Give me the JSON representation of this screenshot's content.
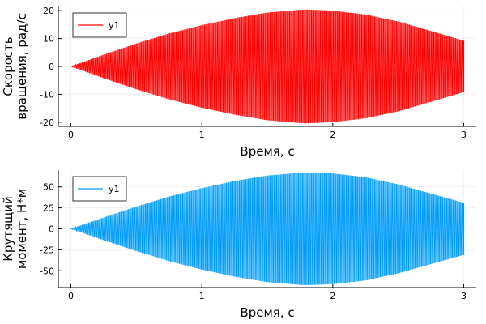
{
  "chart_data": [
    {
      "type": "line",
      "title": "",
      "xlabel": "Время, с",
      "ylabel": [
        "Скорость",
        "вращения, рад/с"
      ],
      "xlim": [
        0,
        3
      ],
      "ylim": [
        -21.5,
        21.5
      ],
      "xticks": [
        0,
        1,
        2,
        3
      ],
      "yticks": [
        -20,
        -10,
        0,
        10,
        20
      ],
      "grid": true,
      "legend_position": "top-left",
      "series": [
        {
          "name": "y1",
          "color": "#ff0000",
          "fill_color": "#ff5555",
          "kind": "oscillation",
          "oscillations": 180,
          "envelope": {
            "t": [
              0,
              0.25,
              0.5,
              0.75,
              1.0,
              1.25,
              1.5,
              1.75,
              1.8,
              2.0,
              2.25,
              2.5,
              2.75,
              3.0
            ],
            "amplitude": [
              0,
              4.2,
              8.2,
              11.8,
              14.8,
              17.3,
              19.3,
              20.3,
              20.4,
              20.0,
              18.6,
              16.1,
              12.7,
              9.2
            ]
          }
        }
      ]
    },
    {
      "type": "line",
      "title": "",
      "xlabel": "Время, с",
      "ylabel": [
        "Крутящий",
        "момент, Н*м"
      ],
      "xlim": [
        0,
        3
      ],
      "ylim": [
        -70,
        70
      ],
      "xticks": [
        0,
        1,
        2,
        3
      ],
      "yticks": [
        -50,
        -25,
        0,
        25,
        50
      ],
      "grid": true,
      "legend_position": "top-left",
      "series": [
        {
          "name": "y1",
          "color": "#009af9",
          "fill_color": "#5ec4ff",
          "kind": "oscillation",
          "oscillations": 180,
          "envelope": {
            "t": [
              0,
              0.25,
              0.5,
              0.75,
              1.0,
              1.25,
              1.5,
              1.75,
              1.8,
              2.0,
              2.25,
              2.5,
              2.75,
              3.0
            ],
            "amplitude": [
              0,
              13.5,
              26.5,
              38.5,
              48.5,
              57.0,
              63.5,
              66.8,
              67.0,
              66.0,
              61.5,
              53.0,
              42.0,
              31.0
            ]
          }
        }
      ]
    }
  ]
}
